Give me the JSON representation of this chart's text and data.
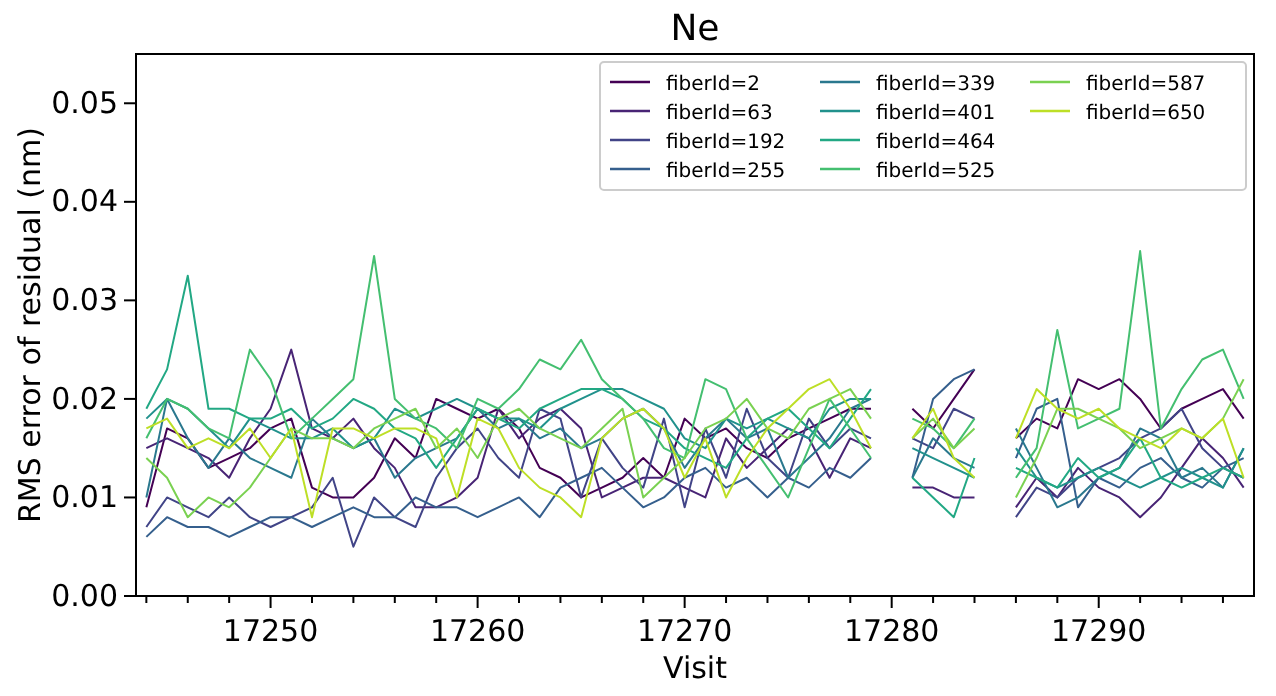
{
  "chart_data": {
    "type": "line",
    "title": "Ne",
    "xlabel": "Visit",
    "ylabel": "RMS error of residual (nm)",
    "x": [
      17244,
      17245,
      17246,
      17247,
      17248,
      17249,
      17250,
      17251,
      17252,
      17253,
      17254,
      17255,
      17256,
      17257,
      17258,
      17259,
      17260,
      17261,
      17262,
      17263,
      17264,
      17265,
      17266,
      17267,
      17268,
      17269,
      17270,
      17271,
      17272,
      17273,
      17274,
      17275,
      17276,
      17277,
      17278,
      17279,
      17280,
      17281,
      17282,
      17283,
      17284,
      17285,
      17286,
      17287,
      17288,
      17289,
      17290,
      17291,
      17292,
      17293,
      17294,
      17295,
      17296,
      17297
    ],
    "xlim": [
      17243.5,
      17297.5
    ],
    "xticks": [
      {
        "value": 17244,
        "label": null
      },
      {
        "value": 17246,
        "label": null
      },
      {
        "value": 17248,
        "label": null
      },
      17250,
      {
        "value": 17252,
        "label": null
      },
      {
        "value": 17254,
        "label": null
      },
      {
        "value": 17256,
        "label": null
      },
      {
        "value": 17258,
        "label": null
      },
      17260,
      {
        "value": 17262,
        "label": null
      },
      {
        "value": 17264,
        "label": null
      },
      {
        "value": 17266,
        "label": null
      },
      {
        "value": 17268,
        "label": null
      },
      17270,
      {
        "value": 17272,
        "label": null
      },
      {
        "value": 17274,
        "label": null
      },
      {
        "value": 17276,
        "label": null
      },
      {
        "value": 17278,
        "label": null
      },
      17280,
      {
        "value": 17282,
        "label": null
      },
      {
        "value": 17284,
        "label": null
      },
      {
        "value": 17286,
        "label": null
      },
      {
        "value": 17288,
        "label": null
      },
      17290,
      {
        "value": 17292,
        "label": null
      },
      {
        "value": 17294,
        "label": null
      },
      {
        "value": 17296,
        "label": null
      }
    ],
    "ylim": [
      0,
      0.055
    ],
    "yticks": [
      {
        "value": 0,
        "label": "0.00"
      },
      {
        "value": 0.01,
        "label": "0.01"
      },
      {
        "value": 0.02,
        "label": "0.02"
      },
      {
        "value": 0.03,
        "label": "0.03"
      },
      {
        "value": 0.04,
        "label": "0.04"
      },
      {
        "value": 0.05,
        "label": "0.05"
      }
    ],
    "legend": "top right",
    "grid": false,
    "line_style": "solid",
    "marker": "none",
    "series": [
      {
        "name": "fiberId=2",
        "color": "#440154",
        "values": [
          0.009,
          0.017,
          0.016,
          0.013,
          0.014,
          0.015,
          0.017,
          0.018,
          0.011,
          0.01,
          0.01,
          0.012,
          0.016,
          0.014,
          0.02,
          0.019,
          0.018,
          0.019,
          0.017,
          0.013,
          0.012,
          0.01,
          0.011,
          0.012,
          0.014,
          0.012,
          0.018,
          0.016,
          0.017,
          0.015,
          0.014,
          0.016,
          0.017,
          0.018,
          0.019,
          0.019,
          null,
          0.019,
          0.017,
          0.02,
          0.023,
          null,
          0.016,
          0.018,
          0.017,
          0.022,
          0.021,
          0.022,
          0.02,
          0.017,
          0.019,
          0.02,
          0.021,
          0.018
        ]
      },
      {
        "name": "fiberId=63",
        "color": "#482475",
        "values": [
          0.015,
          0.016,
          0.015,
          0.014,
          0.012,
          0.016,
          0.019,
          0.025,
          0.017,
          0.016,
          0.018,
          0.015,
          0.013,
          0.009,
          0.009,
          0.01,
          0.012,
          0.019,
          0.016,
          0.018,
          0.019,
          0.017,
          0.01,
          0.011,
          0.012,
          0.012,
          0.011,
          0.01,
          0.016,
          0.013,
          0.015,
          0.017,
          0.016,
          0.012,
          0.016,
          0.015,
          null,
          0.011,
          0.011,
          0.01,
          0.01,
          null,
          0.009,
          0.012,
          0.01,
          0.013,
          0.011,
          0.01,
          0.008,
          0.01,
          0.013,
          0.016,
          0.014,
          0.011
        ]
      },
      {
        "name": "fiberId=192",
        "color": "#414487",
        "values": [
          0.007,
          0.01,
          0.009,
          0.008,
          0.01,
          0.008,
          0.007,
          0.008,
          0.009,
          0.012,
          0.005,
          0.01,
          0.008,
          0.007,
          0.012,
          0.015,
          0.017,
          0.014,
          0.012,
          0.019,
          0.018,
          0.01,
          0.016,
          0.013,
          0.011,
          0.018,
          0.009,
          0.017,
          0.012,
          0.019,
          0.014,
          0.012,
          0.018,
          0.015,
          0.017,
          0.016,
          null,
          0.016,
          0.015,
          0.019,
          0.018,
          null,
          0.008,
          0.011,
          0.01,
          0.012,
          0.013,
          0.014,
          0.016,
          0.017,
          0.019,
          0.015,
          0.013,
          0.012
        ]
      },
      {
        "name": "fiberId=255",
        "color": "#355f8d",
        "values": [
          0.006,
          0.008,
          0.007,
          0.007,
          0.006,
          0.007,
          0.008,
          0.008,
          0.007,
          0.008,
          0.009,
          0.008,
          0.008,
          0.01,
          0.009,
          0.009,
          0.008,
          0.009,
          0.01,
          0.008,
          0.011,
          0.012,
          0.013,
          0.011,
          0.009,
          0.01,
          0.012,
          0.013,
          0.011,
          0.012,
          0.01,
          0.012,
          0.011,
          0.013,
          0.012,
          0.014,
          null,
          0.012,
          0.02,
          0.022,
          0.023,
          null,
          0.014,
          0.019,
          0.02,
          0.009,
          0.012,
          0.011,
          0.013,
          0.014,
          0.012,
          0.011,
          0.013,
          0.014
        ]
      },
      {
        "name": "fiberId=339",
        "color": "#2a788e",
        "values": [
          0.01,
          0.02,
          0.016,
          0.013,
          0.016,
          0.014,
          0.013,
          0.012,
          0.018,
          0.016,
          0.015,
          0.016,
          0.012,
          0.014,
          0.015,
          0.016,
          0.019,
          0.017,
          0.018,
          0.016,
          0.017,
          0.015,
          0.016,
          0.018,
          0.019,
          0.017,
          0.013,
          0.016,
          0.018,
          0.016,
          0.017,
          0.012,
          0.014,
          0.016,
          0.019,
          0.02,
          null,
          0.012,
          0.016,
          0.014,
          0.013,
          null,
          0.017,
          0.013,
          0.009,
          0.01,
          0.012,
          0.013,
          0.017,
          0.016,
          0.012,
          0.013,
          0.011,
          0.015
        ]
      },
      {
        "name": "fiberId=401",
        "color": "#21918c",
        "values": [
          0.018,
          0.02,
          0.019,
          0.017,
          0.015,
          0.018,
          0.017,
          0.016,
          0.016,
          0.017,
          0.015,
          0.016,
          0.019,
          0.018,
          0.019,
          0.02,
          0.019,
          0.018,
          0.018,
          0.017,
          0.019,
          0.02,
          0.021,
          0.021,
          0.02,
          0.019,
          0.016,
          0.015,
          0.018,
          0.017,
          0.018,
          0.017,
          0.016,
          0.019,
          0.02,
          0.02,
          null,
          0.015,
          0.014,
          0.013,
          0.012,
          null,
          0.015,
          0.012,
          0.011,
          0.012,
          0.013,
          0.012,
          0.011,
          0.012,
          0.013,
          0.012,
          0.011,
          0.015
        ]
      },
      {
        "name": "fiberId=464",
        "color": "#22a884",
        "values": [
          0.019,
          0.023,
          0.0325,
          0.019,
          0.019,
          0.018,
          0.018,
          0.019,
          0.017,
          0.018,
          0.02,
          0.019,
          0.017,
          0.016,
          0.013,
          0.016,
          0.019,
          0.018,
          0.017,
          0.019,
          0.02,
          0.021,
          0.021,
          0.02,
          0.018,
          0.017,
          0.015,
          0.014,
          0.013,
          0.016,
          0.018,
          0.019,
          0.017,
          0.015,
          0.018,
          0.021,
          null,
          0.012,
          0.01,
          0.008,
          0.014,
          null,
          0.013,
          0.012,
          0.011,
          0.014,
          0.012,
          0.013,
          0.016,
          0.012,
          0.011,
          0.012,
          0.013,
          0.012
        ]
      },
      {
        "name": "fiberId=525",
        "color": "#44bf70",
        "values": [
          0.016,
          0.02,
          0.019,
          0.017,
          0.016,
          0.025,
          0.022,
          0.016,
          0.018,
          0.02,
          0.022,
          0.0345,
          0.02,
          0.018,
          0.017,
          0.015,
          0.02,
          0.019,
          0.021,
          0.024,
          0.023,
          0.026,
          0.022,
          0.02,
          0.018,
          0.015,
          0.014,
          0.022,
          0.021,
          0.016,
          0.013,
          0.01,
          0.015,
          0.02,
          0.017,
          0.014,
          null,
          0.018,
          0.017,
          0.015,
          0.018,
          null,
          0.012,
          0.015,
          0.027,
          0.017,
          0.018,
          0.019,
          0.035,
          0.017,
          0.021,
          0.024,
          0.025,
          0.02
        ]
      },
      {
        "name": "fiberId=587",
        "color": "#7ad151",
        "values": [
          0.014,
          0.012,
          0.008,
          0.01,
          0.009,
          0.011,
          0.014,
          0.017,
          0.016,
          0.016,
          0.015,
          0.017,
          0.018,
          0.019,
          0.015,
          0.017,
          0.014,
          0.018,
          0.019,
          0.017,
          0.016,
          0.015,
          0.017,
          0.019,
          0.01,
          0.012,
          0.014,
          0.017,
          0.018,
          0.02,
          0.017,
          0.016,
          0.019,
          0.02,
          0.021,
          0.018,
          null,
          0.016,
          0.018,
          0.015,
          0.017,
          null,
          0.01,
          0.014,
          0.019,
          0.019,
          0.018,
          0.017,
          0.015,
          0.016,
          0.017,
          0.016,
          0.018,
          0.022
        ]
      },
      {
        "name": "fiberId=650",
        "color": "#bddf26",
        "values": [
          0.017,
          0.018,
          0.015,
          0.016,
          0.015,
          0.017,
          0.014,
          0.017,
          0.008,
          0.017,
          0.017,
          0.016,
          0.017,
          0.017,
          0.016,
          0.01,
          0.018,
          0.017,
          0.013,
          0.011,
          0.01,
          0.008,
          0.016,
          0.018,
          0.019,
          0.017,
          0.012,
          0.016,
          0.01,
          0.014,
          0.017,
          0.019,
          0.021,
          0.022,
          0.019,
          0.015,
          null,
          0.016,
          0.019,
          0.014,
          0.012,
          null,
          0.016,
          0.021,
          0.019,
          0.018,
          0.019,
          0.017,
          0.016,
          0.015,
          0.017,
          0.016,
          0.018,
          0.012
        ]
      }
    ]
  }
}
